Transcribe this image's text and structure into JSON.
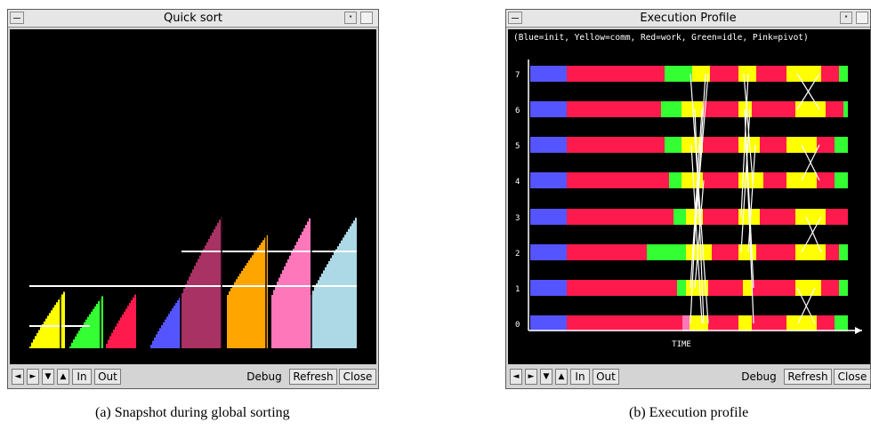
{
  "figure_a": {
    "title": "Quick sort",
    "caption": "(a) Snapshot during global sorting",
    "toolbar": {
      "left": "◄",
      "right": "►",
      "down": "▼",
      "up": "▲",
      "in": "In",
      "out": "Out",
      "debug": "Debug",
      "refresh": "Refresh",
      "close": "Close"
    },
    "colors": [
      "#ffff00",
      "#33ff33",
      "#ff1a4d",
      "#5555ff",
      "#a83264",
      "#ffa500",
      "#ff77bb",
      "#add8e6"
    ]
  },
  "figure_b": {
    "title": "Execution Profile",
    "caption": "(b) Execution profile",
    "legend": "(Blue=init, Yellow=comm, Red=work, Green=idle, Pink=pivot)",
    "xlabel": "TIME",
    "processors": [
      "7",
      "6",
      "5",
      "4",
      "3",
      "2",
      "1",
      "0"
    ],
    "colors": {
      "init": "#5555ff",
      "comm": "#ffff00",
      "work": "#ff1a4d",
      "idle": "#33ff33",
      "pivot": "#ff77bb"
    },
    "toolbar": {
      "left": "◄",
      "right": "►",
      "down": "▼",
      "up": "▲",
      "in": "In",
      "out": "Out",
      "debug": "Debug",
      "refresh": "Refresh",
      "close": "Close"
    }
  }
}
